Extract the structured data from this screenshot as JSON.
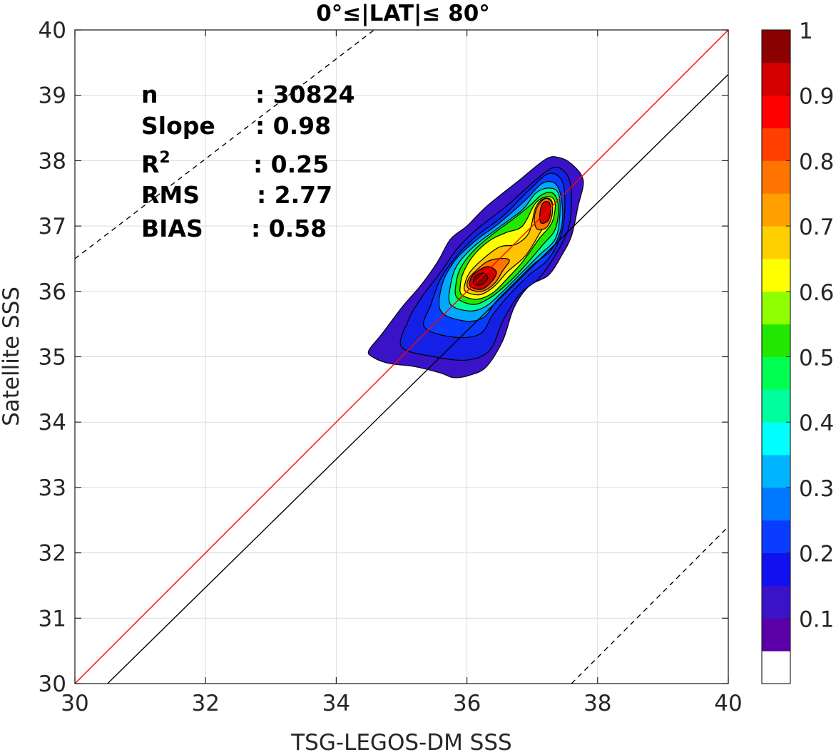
{
  "chart_data": {
    "type": "contour-density",
    "title": "0°≤|LAT|≤ 80°",
    "xlabel": "TSG-LEGOS-DM SSS",
    "ylabel": "Satellite SSS",
    "xlim": [
      30,
      40
    ],
    "ylim": [
      30,
      40
    ],
    "x_ticks": [
      30,
      32,
      34,
      36,
      38,
      40
    ],
    "y_ticks": [
      30,
      31,
      32,
      33,
      34,
      35,
      36,
      37,
      38,
      39,
      40
    ],
    "grid": true,
    "stats": [
      {
        "name": "n",
        "value": ": 30824"
      },
      {
        "name": "Slope",
        "value": ": 0.98"
      },
      {
        "name": "R",
        "sup": "2",
        "value": ": 0.25"
      },
      {
        "name": "RMS",
        "value": ": 2.77"
      },
      {
        "name": "BIAS",
        "value": ": 0.58"
      }
    ],
    "lines": [
      {
        "id": "one-to-one",
        "color": "#ff0000",
        "dash": false,
        "points": [
          [
            30,
            30
          ],
          [
            40,
            40
          ]
        ]
      },
      {
        "id": "regression",
        "color": "#000000",
        "dash": false,
        "points": [
          [
            30.5,
            30
          ],
          [
            40,
            39.32
          ]
        ]
      },
      {
        "id": "upper-envelope",
        "color": "#000000",
        "dash": true,
        "points": [
          [
            30,
            36.5
          ],
          [
            34.58,
            40
          ]
        ]
      },
      {
        "id": "lower-envelope",
        "color": "#000000",
        "dash": true,
        "points": [
          [
            37.6,
            30
          ],
          [
            40,
            32.4
          ]
        ]
      }
    ],
    "density_peaks": [
      {
        "x": 36.15,
        "y": 36.15,
        "value": 1.0
      },
      {
        "x": 37.25,
        "y": 37.3,
        "value": 0.92
      }
    ],
    "contours": [
      {
        "level": 0.05,
        "color": "#3a12c8",
        "points": [
          [
            34.55,
            35.0
          ],
          [
            34.8,
            34.9
          ],
          [
            35.2,
            34.85
          ],
          [
            35.6,
            34.75
          ],
          [
            35.8,
            34.68
          ],
          [
            36.05,
            34.72
          ],
          [
            36.3,
            34.85
          ],
          [
            36.55,
            35.25
          ],
          [
            36.72,
            35.75
          ],
          [
            36.95,
            36.08
          ],
          [
            37.25,
            36.25
          ],
          [
            37.45,
            36.55
          ],
          [
            37.6,
            36.85
          ],
          [
            37.7,
            37.3
          ],
          [
            37.78,
            37.7
          ],
          [
            37.6,
            37.95
          ],
          [
            37.4,
            38.05
          ],
          [
            37.2,
            38.02
          ],
          [
            36.8,
            37.7
          ],
          [
            36.3,
            37.3
          ],
          [
            36.0,
            37.0
          ],
          [
            35.75,
            36.8
          ],
          [
            35.55,
            36.45
          ],
          [
            35.3,
            36.1
          ],
          [
            35.0,
            35.75
          ],
          [
            34.7,
            35.35
          ],
          [
            34.5,
            35.1
          ]
        ]
      },
      {
        "level": 0.1,
        "color": "#1520e6",
        "points": [
          [
            35.0,
            35.15
          ],
          [
            35.5,
            35.0
          ],
          [
            36.0,
            34.95
          ],
          [
            36.35,
            35.1
          ],
          [
            36.55,
            35.55
          ],
          [
            36.8,
            35.95
          ],
          [
            37.1,
            36.2
          ],
          [
            37.35,
            36.55
          ],
          [
            37.55,
            36.95
          ],
          [
            37.6,
            37.4
          ],
          [
            37.55,
            37.75
          ],
          [
            37.35,
            37.9
          ],
          [
            37.05,
            37.7
          ],
          [
            36.6,
            37.3
          ],
          [
            36.15,
            36.95
          ],
          [
            35.85,
            36.65
          ],
          [
            35.6,
            36.3
          ],
          [
            35.3,
            35.9
          ],
          [
            35.1,
            35.55
          ]
        ]
      },
      {
        "level": 0.2,
        "color": "#0a3cff",
        "points": [
          [
            35.35,
            35.45
          ],
          [
            35.8,
            35.3
          ],
          [
            36.2,
            35.35
          ],
          [
            36.4,
            35.65
          ],
          [
            36.65,
            35.95
          ],
          [
            36.95,
            36.25
          ],
          [
            37.25,
            36.5
          ],
          [
            37.45,
            36.9
          ],
          [
            37.5,
            37.35
          ],
          [
            37.45,
            37.7
          ],
          [
            37.25,
            37.8
          ],
          [
            36.95,
            37.55
          ],
          [
            36.55,
            37.15
          ],
          [
            36.15,
            36.85
          ],
          [
            35.85,
            36.55
          ],
          [
            35.6,
            36.2
          ],
          [
            35.45,
            35.8
          ]
        ]
      },
      {
        "level": 0.3,
        "color": "#00a8ff",
        "points": [
          [
            35.6,
            35.7
          ],
          [
            35.95,
            35.55
          ],
          [
            36.25,
            35.6
          ],
          [
            36.45,
            35.85
          ],
          [
            36.7,
            36.1
          ],
          [
            37.0,
            36.4
          ],
          [
            37.3,
            36.65
          ],
          [
            37.45,
            37.0
          ],
          [
            37.45,
            37.4
          ],
          [
            37.35,
            37.65
          ],
          [
            37.15,
            37.65
          ],
          [
            36.9,
            37.4
          ],
          [
            36.5,
            37.05
          ],
          [
            36.1,
            36.75
          ],
          [
            35.8,
            36.45
          ],
          [
            35.62,
            36.1
          ]
        ]
      },
      {
        "level": 0.4,
        "color": "#00ff9c",
        "points": [
          [
            35.75,
            35.8
          ],
          [
            36.05,
            35.7
          ],
          [
            36.3,
            35.78
          ],
          [
            36.55,
            36.0
          ],
          [
            36.8,
            36.25
          ],
          [
            37.1,
            36.55
          ],
          [
            37.35,
            36.8
          ],
          [
            37.42,
            37.15
          ],
          [
            37.4,
            37.5
          ],
          [
            37.25,
            37.58
          ],
          [
            37.05,
            37.5
          ],
          [
            36.85,
            37.25
          ],
          [
            36.45,
            36.95
          ],
          [
            36.1,
            36.68
          ],
          [
            35.85,
            36.4
          ],
          [
            35.75,
            36.1
          ]
        ]
      },
      {
        "level": 0.5,
        "color": "#22e800",
        "points": [
          [
            35.85,
            35.9
          ],
          [
            36.1,
            35.8
          ],
          [
            36.35,
            35.9
          ],
          [
            36.6,
            36.1
          ],
          [
            36.85,
            36.35
          ],
          [
            37.15,
            36.7
          ],
          [
            37.35,
            36.95
          ],
          [
            37.4,
            37.3
          ],
          [
            37.32,
            37.5
          ],
          [
            37.15,
            37.48
          ],
          [
            36.95,
            37.3
          ],
          [
            36.7,
            37.1
          ],
          [
            36.4,
            36.88
          ],
          [
            36.1,
            36.62
          ],
          [
            35.9,
            36.35
          ],
          [
            35.83,
            36.1
          ]
        ]
      },
      {
        "level": 0.6,
        "color": "#ffff00",
        "points": [
          [
            35.92,
            35.95
          ],
          [
            36.15,
            35.88
          ],
          [
            36.4,
            35.98
          ],
          [
            36.62,
            36.2
          ],
          [
            36.85,
            36.45
          ],
          [
            37.1,
            36.8
          ],
          [
            37.3,
            37.05
          ],
          [
            37.35,
            37.35
          ],
          [
            37.25,
            37.45
          ],
          [
            37.05,
            37.35
          ],
          [
            36.85,
            37.0
          ],
          [
            36.6,
            36.9
          ],
          [
            36.35,
            36.78
          ],
          [
            36.1,
            36.55
          ],
          [
            35.95,
            36.3
          ],
          [
            35.9,
            36.1
          ]
        ]
      },
      {
        "level": 0.7,
        "color": "#ffc400",
        "points": [
          [
            35.98,
            36.0
          ],
          [
            36.2,
            35.95
          ],
          [
            36.42,
            36.08
          ],
          [
            36.62,
            36.3
          ],
          [
            36.9,
            36.55
          ],
          [
            37.12,
            36.9
          ],
          [
            37.28,
            37.15
          ],
          [
            37.3,
            37.38
          ],
          [
            37.18,
            37.42
          ],
          [
            37.05,
            37.28
          ],
          [
            36.95,
            36.9
          ],
          [
            36.75,
            36.72
          ],
          [
            36.5,
            36.68
          ],
          [
            36.25,
            36.5
          ],
          [
            36.05,
            36.3
          ],
          [
            35.97,
            36.12
          ]
        ]
      },
      {
        "level": 0.8,
        "color": "#ff7400",
        "points": [
          [
            36.02,
            36.05
          ],
          [
            36.22,
            36.0
          ],
          [
            36.42,
            36.12
          ],
          [
            36.55,
            36.32
          ],
          [
            36.65,
            36.48
          ],
          [
            36.48,
            36.5
          ],
          [
            36.3,
            36.45
          ],
          [
            36.12,
            36.3
          ],
          [
            36.02,
            36.18
          ]
        ]
      },
      {
        "level": 0.8,
        "color": "#ff7400",
        "points": [
          [
            37.08,
            36.95
          ],
          [
            37.22,
            36.98
          ],
          [
            37.3,
            37.15
          ],
          [
            37.3,
            37.35
          ],
          [
            37.2,
            37.42
          ],
          [
            37.08,
            37.3
          ],
          [
            37.03,
            37.1
          ]
        ]
      },
      {
        "level": 0.9,
        "color": "#d40000",
        "points": [
          [
            36.05,
            36.08
          ],
          [
            36.22,
            36.03
          ],
          [
            36.38,
            36.15
          ],
          [
            36.45,
            36.3
          ],
          [
            36.32,
            36.38
          ],
          [
            36.15,
            36.3
          ],
          [
            36.06,
            36.2
          ]
        ]
      },
      {
        "level": 0.9,
        "color": "#d40000",
        "points": [
          [
            37.13,
            37.05
          ],
          [
            37.24,
            37.08
          ],
          [
            37.28,
            37.22
          ],
          [
            37.26,
            37.36
          ],
          [
            37.17,
            37.36
          ],
          [
            37.12,
            37.22
          ]
        ]
      },
      {
        "level": 1.0,
        "color": "#8b0000",
        "points": [
          [
            36.1,
            36.12
          ],
          [
            36.22,
            36.1
          ],
          [
            36.32,
            36.2
          ],
          [
            36.26,
            36.28
          ],
          [
            36.14,
            36.24
          ]
        ]
      }
    ],
    "colorbar": {
      "tick_labels": [
        "1",
        "0.9",
        "0.8",
        "0.7",
        "0.6",
        "0.5",
        "0.4",
        "0.3",
        "0.2",
        "0.1"
      ],
      "tick_values": [
        1,
        0.9,
        0.8,
        0.7,
        0.6,
        0.5,
        0.4,
        0.3,
        0.2,
        0.1
      ],
      "range": [
        0,
        1
      ],
      "bands": [
        {
          "from": 0.0,
          "to": 0.05,
          "color": "#ffffff"
        },
        {
          "from": 0.05,
          "to": 0.1,
          "color": "#5a00a8"
        },
        {
          "from": 0.1,
          "to": 0.15,
          "color": "#3a12c8"
        },
        {
          "from": 0.15,
          "to": 0.2,
          "color": "#1010f0"
        },
        {
          "from": 0.2,
          "to": 0.25,
          "color": "#0a3cff"
        },
        {
          "from": 0.25,
          "to": 0.3,
          "color": "#0078ff"
        },
        {
          "from": 0.3,
          "to": 0.35,
          "color": "#00b4ff"
        },
        {
          "from": 0.35,
          "to": 0.4,
          "color": "#00ffff"
        },
        {
          "from": 0.4,
          "to": 0.45,
          "color": "#00ff9c"
        },
        {
          "from": 0.45,
          "to": 0.5,
          "color": "#00ff50"
        },
        {
          "from": 0.5,
          "to": 0.55,
          "color": "#22e800"
        },
        {
          "from": 0.55,
          "to": 0.6,
          "color": "#90ff00"
        },
        {
          "from": 0.6,
          "to": 0.65,
          "color": "#ffff00"
        },
        {
          "from": 0.65,
          "to": 0.7,
          "color": "#ffd000"
        },
        {
          "from": 0.7,
          "to": 0.75,
          "color": "#ffa000"
        },
        {
          "from": 0.75,
          "to": 0.8,
          "color": "#ff7400"
        },
        {
          "from": 0.8,
          "to": 0.85,
          "color": "#ff4000"
        },
        {
          "from": 0.85,
          "to": 0.9,
          "color": "#ff0000"
        },
        {
          "from": 0.9,
          "to": 0.95,
          "color": "#d40000"
        },
        {
          "from": 0.95,
          "to": 1.0,
          "color": "#8b0000"
        }
      ]
    }
  }
}
